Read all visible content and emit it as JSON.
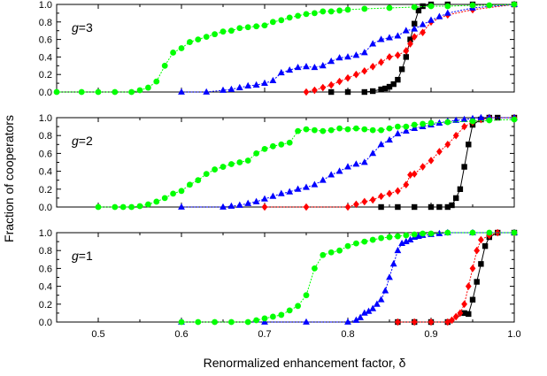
{
  "figure": {
    "ylabel": "Fraction of cooperators",
    "xlabel": "Renormalized enhancement factor, δ",
    "x_ticks": [
      "0.5",
      "0.6",
      "0.7",
      "0.8",
      "0.9",
      "1.0"
    ],
    "y_ticks": [
      "0.0",
      "0.2",
      "0.4",
      "0.6",
      "0.8",
      "1.0"
    ]
  },
  "chart_data": [
    {
      "type": "line",
      "panel_label_var": "g",
      "panel_label_rest": "=3",
      "xlim": [
        0.45,
        1.0
      ],
      "ylim": [
        0.0,
        1.0
      ],
      "series": [
        {
          "color": "#000000",
          "marker": "square",
          "x": [
            0.78,
            0.8,
            0.82,
            0.83,
            0.84,
            0.845,
            0.85,
            0.855,
            0.86,
            0.865,
            0.87,
            0.875,
            0.88,
            0.885,
            0.89,
            0.9,
            0.92,
            0.95,
            1.0
          ],
          "y": [
            0.0,
            0.0,
            0.0,
            0.01,
            0.03,
            0.04,
            0.06,
            0.09,
            0.14,
            0.26,
            0.4,
            0.6,
            0.78,
            0.93,
            0.98,
            1.0,
            1.0,
            1.0,
            1.0
          ]
        },
        {
          "color": "#ff0000",
          "marker": "diamond",
          "x": [
            0.75,
            0.76,
            0.77,
            0.78,
            0.79,
            0.8,
            0.81,
            0.82,
            0.83,
            0.84,
            0.85,
            0.86,
            0.87,
            0.875,
            0.88,
            0.89,
            0.9,
            0.92,
            0.95,
            1.0
          ],
          "y": [
            0.0,
            0.02,
            0.05,
            0.08,
            0.12,
            0.16,
            0.2,
            0.24,
            0.29,
            0.34,
            0.4,
            0.42,
            0.47,
            0.55,
            0.63,
            0.68,
            0.8,
            0.88,
            0.94,
            1.0
          ]
        },
        {
          "color": "#0000ff",
          "marker": "triangle",
          "x": [
            0.6,
            0.63,
            0.65,
            0.66,
            0.67,
            0.68,
            0.69,
            0.7,
            0.71,
            0.72,
            0.73,
            0.74,
            0.75,
            0.76,
            0.77,
            0.78,
            0.79,
            0.8,
            0.81,
            0.82,
            0.83,
            0.84,
            0.85,
            0.86,
            0.87,
            0.88,
            0.89,
            0.9,
            0.91,
            0.92,
            0.95,
            1.0
          ],
          "y": [
            0.0,
            0.0,
            0.02,
            0.03,
            0.05,
            0.07,
            0.08,
            0.1,
            0.13,
            0.22,
            0.25,
            0.28,
            0.29,
            0.28,
            0.3,
            0.35,
            0.39,
            0.4,
            0.42,
            0.45,
            0.55,
            0.6,
            0.62,
            0.64,
            0.7,
            0.72,
            0.77,
            0.82,
            0.86,
            0.9,
            0.96,
            1.0
          ]
        },
        {
          "color": "#00ff00",
          "marker": "circle",
          "x": [
            0.45,
            0.48,
            0.5,
            0.52,
            0.54,
            0.55,
            0.56,
            0.57,
            0.58,
            0.59,
            0.6,
            0.61,
            0.62,
            0.63,
            0.64,
            0.65,
            0.66,
            0.67,
            0.68,
            0.69,
            0.7,
            0.71,
            0.72,
            0.73,
            0.74,
            0.75,
            0.76,
            0.77,
            0.78,
            0.79,
            0.8,
            0.82,
            0.85,
            0.88,
            0.9,
            0.92,
            0.95,
            0.97,
            1.0
          ],
          "y": [
            0.0,
            0.0,
            0.0,
            0.0,
            0.0,
            0.02,
            0.05,
            0.12,
            0.3,
            0.45,
            0.5,
            0.57,
            0.6,
            0.63,
            0.66,
            0.69,
            0.7,
            0.73,
            0.74,
            0.75,
            0.76,
            0.8,
            0.82,
            0.85,
            0.87,
            0.89,
            0.9,
            0.92,
            0.92,
            0.93,
            0.94,
            0.95,
            0.96,
            0.97,
            0.98,
            0.98,
            0.99,
            0.99,
            1.0
          ]
        }
      ]
    },
    {
      "type": "line",
      "panel_label_var": "g",
      "panel_label_rest": "=2",
      "xlim": [
        0.45,
        1.0
      ],
      "ylim": [
        0.0,
        1.0
      ],
      "series": [
        {
          "color": "#000000",
          "marker": "square",
          "x": [
            0.84,
            0.86,
            0.88,
            0.9,
            0.91,
            0.92,
            0.925,
            0.93,
            0.935,
            0.94,
            0.945,
            0.95,
            0.96,
            0.97,
            0.98,
            1.0
          ],
          "y": [
            0.0,
            0.0,
            0.0,
            0.0,
            0.0,
            0.0,
            0.02,
            0.1,
            0.2,
            0.45,
            0.7,
            0.92,
            0.98,
            1.0,
            1.0,
            1.0
          ]
        },
        {
          "color": "#ff0000",
          "marker": "diamond",
          "x": [
            0.7,
            0.75,
            0.8,
            0.81,
            0.82,
            0.83,
            0.84,
            0.85,
            0.86,
            0.87,
            0.875,
            0.88,
            0.89,
            0.9,
            0.91,
            0.92,
            0.93,
            0.94,
            0.95,
            0.96,
            0.97,
            1.0
          ],
          "y": [
            0.0,
            0.0,
            0.0,
            0.03,
            0.06,
            0.08,
            0.12,
            0.15,
            0.18,
            0.25,
            0.36,
            0.37,
            0.45,
            0.52,
            0.62,
            0.7,
            0.8,
            0.9,
            0.95,
            0.98,
            1.0,
            1.0
          ]
        },
        {
          "color": "#0000ff",
          "marker": "triangle",
          "x": [
            0.6,
            0.65,
            0.66,
            0.67,
            0.68,
            0.69,
            0.7,
            0.71,
            0.72,
            0.73,
            0.74,
            0.75,
            0.76,
            0.77,
            0.78,
            0.79,
            0.8,
            0.81,
            0.82,
            0.83,
            0.84,
            0.85,
            0.86,
            0.87,
            0.88,
            0.89,
            0.9,
            0.91,
            0.92,
            0.93,
            0.94,
            0.95,
            0.96,
            0.97,
            1.0
          ],
          "y": [
            0.0,
            0.0,
            0.01,
            0.02,
            0.04,
            0.06,
            0.09,
            0.12,
            0.15,
            0.17,
            0.2,
            0.22,
            0.25,
            0.3,
            0.36,
            0.4,
            0.45,
            0.48,
            0.5,
            0.6,
            0.7,
            0.75,
            0.82,
            0.85,
            0.88,
            0.9,
            0.92,
            0.94,
            0.96,
            0.97,
            0.98,
            0.99,
            1.0,
            1.0,
            1.0
          ]
        },
        {
          "color": "#00ff00",
          "marker": "circle",
          "x": [
            0.5,
            0.52,
            0.53,
            0.54,
            0.55,
            0.56,
            0.57,
            0.58,
            0.59,
            0.6,
            0.61,
            0.62,
            0.63,
            0.64,
            0.65,
            0.66,
            0.67,
            0.68,
            0.69,
            0.7,
            0.71,
            0.72,
            0.73,
            0.74,
            0.75,
            0.76,
            0.77,
            0.78,
            0.79,
            0.8,
            0.81,
            0.82,
            0.83,
            0.84,
            0.85,
            0.86,
            0.87,
            0.88,
            0.89,
            0.9,
            0.92,
            0.95,
            0.97,
            1.0
          ],
          "y": [
            0.0,
            0.0,
            0.0,
            0.0,
            0.01,
            0.03,
            0.06,
            0.1,
            0.15,
            0.18,
            0.25,
            0.3,
            0.37,
            0.42,
            0.45,
            0.48,
            0.5,
            0.52,
            0.6,
            0.65,
            0.68,
            0.7,
            0.72,
            0.85,
            0.87,
            0.86,
            0.85,
            0.86,
            0.88,
            0.87,
            0.88,
            0.87,
            0.86,
            0.86,
            0.88,
            0.9,
            0.9,
            0.92,
            0.93,
            0.94,
            0.95,
            0.96,
            0.97,
            0.98
          ]
        }
      ]
    },
    {
      "type": "line",
      "panel_label_var": "g",
      "panel_label_rest": "=1",
      "xlim": [
        0.45,
        1.0
      ],
      "ylim": [
        0.0,
        1.0
      ],
      "series": [
        {
          "color": "#000000",
          "marker": "square",
          "x": [
            0.86,
            0.88,
            0.9,
            0.92,
            0.94,
            0.945,
            0.95,
            0.955,
            0.96,
            0.965,
            0.97,
            0.98,
            1.0
          ],
          "y": [
            0.0,
            0.0,
            0.0,
            0.0,
            0.1,
            0.09,
            0.25,
            0.45,
            0.65,
            0.85,
            0.95,
            1.0,
            1.0
          ]
        },
        {
          "color": "#ff0000",
          "marker": "diamond",
          "x": [
            0.86,
            0.88,
            0.9,
            0.92,
            0.925,
            0.93,
            0.935,
            0.94,
            0.945,
            0.95,
            0.955,
            0.96,
            0.97,
            0.98,
            1.0
          ],
          "y": [
            0.0,
            0.0,
            0.0,
            0.0,
            0.02,
            0.06,
            0.1,
            0.2,
            0.4,
            0.6,
            0.8,
            0.92,
            0.97,
            1.0,
            1.0
          ]
        },
        {
          "color": "#0000ff",
          "marker": "triangle",
          "x": [
            0.6,
            0.7,
            0.75,
            0.8,
            0.81,
            0.815,
            0.82,
            0.825,
            0.83,
            0.835,
            0.84,
            0.845,
            0.85,
            0.855,
            0.86,
            0.865,
            0.87,
            0.875,
            0.88,
            0.885,
            0.89,
            0.9,
            0.91,
            0.92,
            0.95,
            1.0
          ],
          "y": [
            0.0,
            0.0,
            0.0,
            0.0,
            0.02,
            0.05,
            0.1,
            0.12,
            0.15,
            0.2,
            0.25,
            0.35,
            0.5,
            0.65,
            0.8,
            0.88,
            0.9,
            0.92,
            0.95,
            0.96,
            0.97,
            0.98,
            0.99,
            1.0,
            1.0,
            1.0
          ]
        },
        {
          "color": "#00ff00",
          "marker": "circle",
          "x": [
            0.6,
            0.62,
            0.64,
            0.66,
            0.68,
            0.69,
            0.7,
            0.71,
            0.72,
            0.73,
            0.74,
            0.75,
            0.76,
            0.77,
            0.78,
            0.79,
            0.8,
            0.81,
            0.82,
            0.83,
            0.84,
            0.85,
            0.86,
            0.87,
            0.88,
            0.89,
            0.9,
            0.92,
            0.95,
            0.97,
            1.0
          ],
          "y": [
            0.0,
            0.0,
            0.0,
            0.0,
            0.0,
            0.02,
            0.04,
            0.06,
            0.08,
            0.13,
            0.18,
            0.3,
            0.6,
            0.75,
            0.78,
            0.8,
            0.85,
            0.88,
            0.9,
            0.92,
            0.94,
            0.95,
            0.96,
            0.97,
            0.98,
            0.99,
            0.99,
            1.0,
            1.0,
            1.0,
            1.0
          ]
        }
      ]
    }
  ]
}
